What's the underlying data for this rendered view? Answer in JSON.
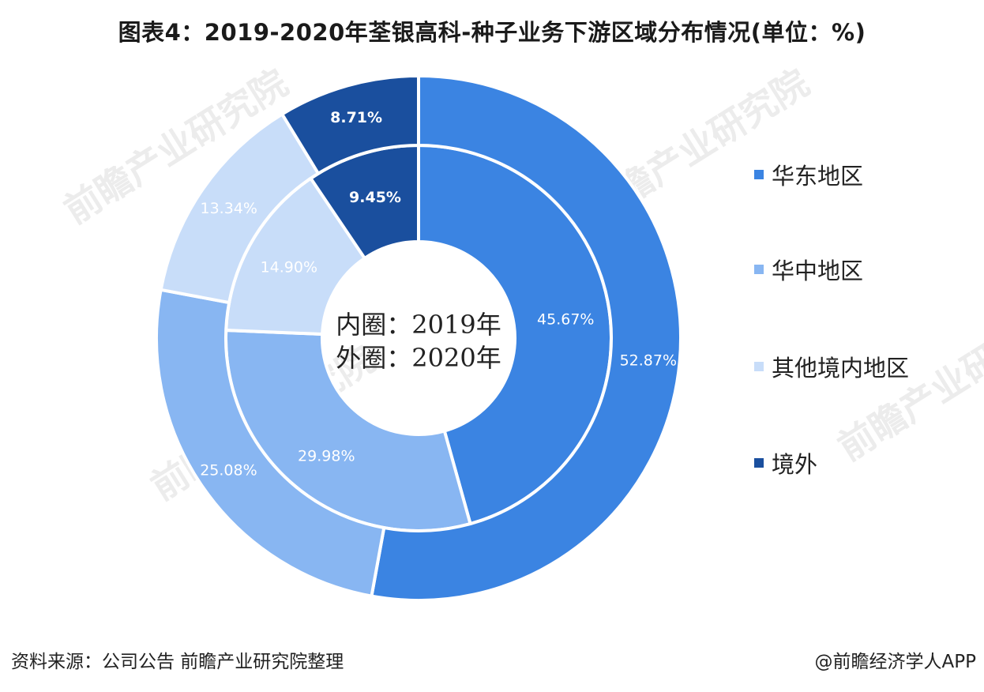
{
  "title": "图表4：2019-2020年荃银高科-种子业务下游区域分布情况(单位：%)",
  "source": "资料来源：公司公告 前瞻产业研究院整理",
  "credit": "@前瞻经济学人APP",
  "watermark": "前瞻产业研究院",
  "center_label_inner": "内圈：2019年",
  "center_label_outer": "外圈：2020年",
  "legend": [
    {
      "label": "华东地区",
      "color": "#3b84e2"
    },
    {
      "label": "华中地区",
      "color": "#88b6f2"
    },
    {
      "label": "其他境内地区",
      "color": "#c8ddf9"
    },
    {
      "label": "境外",
      "color": "#1a4f9e"
    }
  ],
  "chart_data": {
    "type": "donut",
    "categories": [
      "华东地区",
      "华中地区",
      "其他境内地区",
      "境外"
    ],
    "series": [
      {
        "name": "2019年",
        "ring": "inner",
        "values": [
          45.67,
          29.98,
          14.9,
          9.45
        ],
        "labels": [
          "45.67%",
          "29.98%",
          "14.90%",
          "9.45%"
        ]
      },
      {
        "name": "2020年",
        "ring": "outer",
        "values": [
          52.87,
          25.08,
          13.34,
          8.71
        ],
        "labels": [
          "52.87%",
          "25.08%",
          "13.34%",
          "8.71%"
        ]
      }
    ],
    "colors": [
      "#3b84e2",
      "#88b6f2",
      "#c8ddf9",
      "#1a4f9e"
    ],
    "label_colors": [
      "#ffffff",
      "#ffffff",
      "#ffffff",
      "#ffffff"
    ],
    "unit": "%"
  }
}
